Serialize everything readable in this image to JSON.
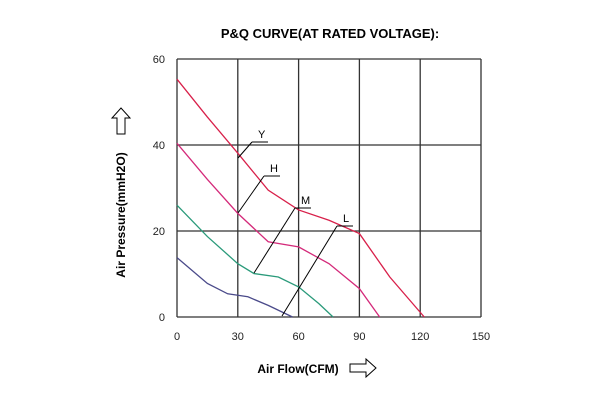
{
  "chart_data": {
    "type": "line",
    "title": "P&Q CURVE(AT RATED VOLTAGE):",
    "xlabel": "Air Flow(CFM)",
    "ylabel": "Air Pressure(mmH2O)",
    "xlim": [
      0,
      150
    ],
    "ylim": [
      0,
      60
    ],
    "xticks": [
      0,
      30,
      60,
      90,
      120,
      150
    ],
    "yticks": [
      0,
      20,
      40,
      60
    ],
    "grid": true,
    "series": [
      {
        "name": "Y",
        "color": "#d8204a",
        "x": [
          0,
          15,
          30,
          45,
          60,
          75,
          90,
          105,
          122
        ],
        "y": [
          55.3,
          46.5,
          38.1,
          29.5,
          24.9,
          22.5,
          19.4,
          9.3,
          0
        ]
      },
      {
        "name": "H",
        "color": "#d42a7a",
        "x": [
          0,
          15,
          30,
          45,
          60,
          75,
          90,
          100
        ],
        "y": [
          40.4,
          32,
          24.1,
          17.5,
          16.3,
          12.4,
          6.6,
          0
        ]
      },
      {
        "name": "M",
        "color": "#2a9a7a",
        "x": [
          0,
          15,
          30,
          38,
          50,
          60,
          70,
          77
        ],
        "y": [
          26,
          18.7,
          12.4,
          10.1,
          9.3,
          7.0,
          3.1,
          0
        ]
      },
      {
        "name": "L",
        "color": "#4a4a8a",
        "x": [
          0,
          15,
          25,
          35,
          45,
          57
        ],
        "y": [
          13.8,
          7.8,
          5.4,
          4.7,
          2.7,
          0
        ]
      }
    ]
  }
}
